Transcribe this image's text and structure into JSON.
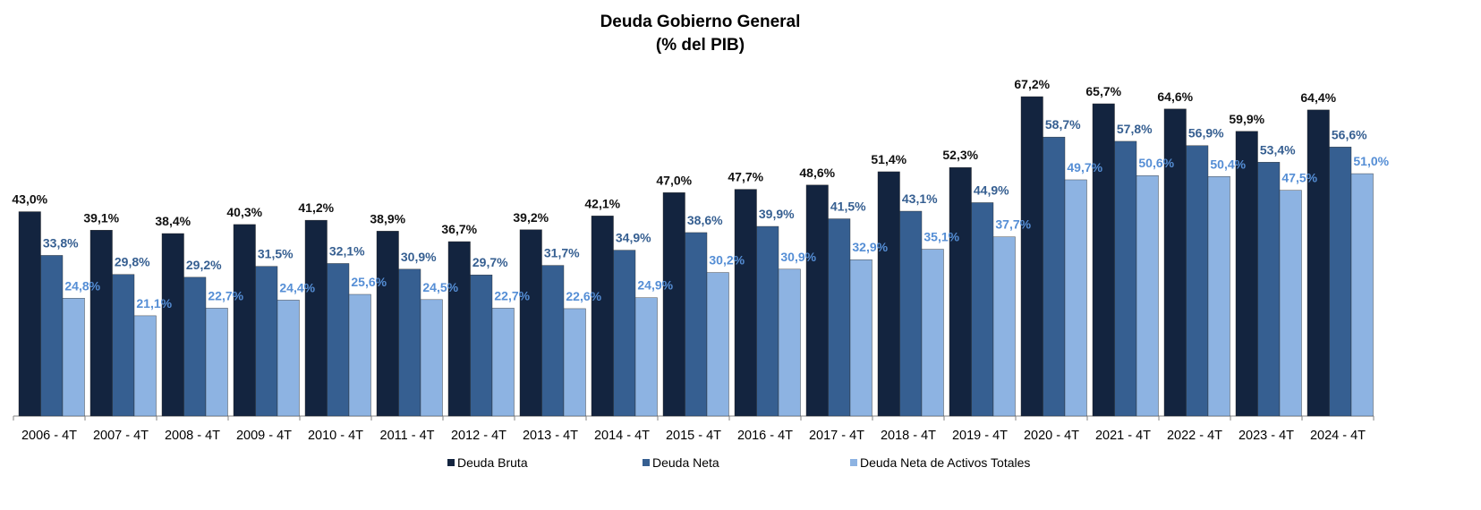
{
  "chart_data": {
    "type": "bar",
    "title": "Deuda Gobierno General",
    "subtitle": "(% del PIB)",
    "xlabel": "",
    "ylabel": "",
    "ylim": [
      0,
      70
    ],
    "grid": false,
    "legend_position": "bottom",
    "categories": [
      "2006 - 4T",
      "2007 - 4T",
      "2008 - 4T",
      "2009 - 4T",
      "2010 - 4T",
      "2011 - 4T",
      "2012 - 4T",
      "2013 - 4T",
      "2014 - 4T",
      "2015 - 4T",
      "2016 - 4T",
      "2017 - 4T",
      "2018 - 4T",
      "2019 - 4T",
      "2020 - 4T",
      "2021 - 4T",
      "2022 - 4T",
      "2023 - 4T",
      "2024 - 4T"
    ],
    "series": [
      {
        "name": "Deuda Bruta",
        "color": "#13243f",
        "label_color": "#111111",
        "values": [
          43.0,
          39.1,
          38.4,
          40.3,
          41.2,
          38.9,
          36.7,
          39.2,
          42.1,
          47.0,
          47.7,
          48.6,
          51.4,
          52.3,
          67.2,
          65.7,
          64.6,
          59.9,
          64.4
        ]
      },
      {
        "name": "Deuda Neta",
        "color": "#365f91",
        "label_color": "#365f91",
        "values": [
          33.8,
          29.8,
          29.2,
          31.5,
          32.1,
          30.9,
          29.7,
          31.7,
          34.9,
          38.6,
          39.9,
          41.5,
          43.1,
          44.9,
          58.7,
          57.8,
          56.9,
          53.4,
          56.6
        ]
      },
      {
        "name": "Deuda Neta de Activos Totales",
        "color": "#8db3e2",
        "label_color": "#558ed5",
        "values": [
          24.8,
          21.1,
          22.7,
          24.4,
          25.6,
          24.5,
          22.7,
          22.6,
          24.9,
          30.2,
          30.9,
          32.9,
          35.1,
          37.7,
          49.7,
          50.6,
          50.4,
          47.5,
          51.0
        ]
      }
    ],
    "value_format": "comma-decimal-percent"
  }
}
